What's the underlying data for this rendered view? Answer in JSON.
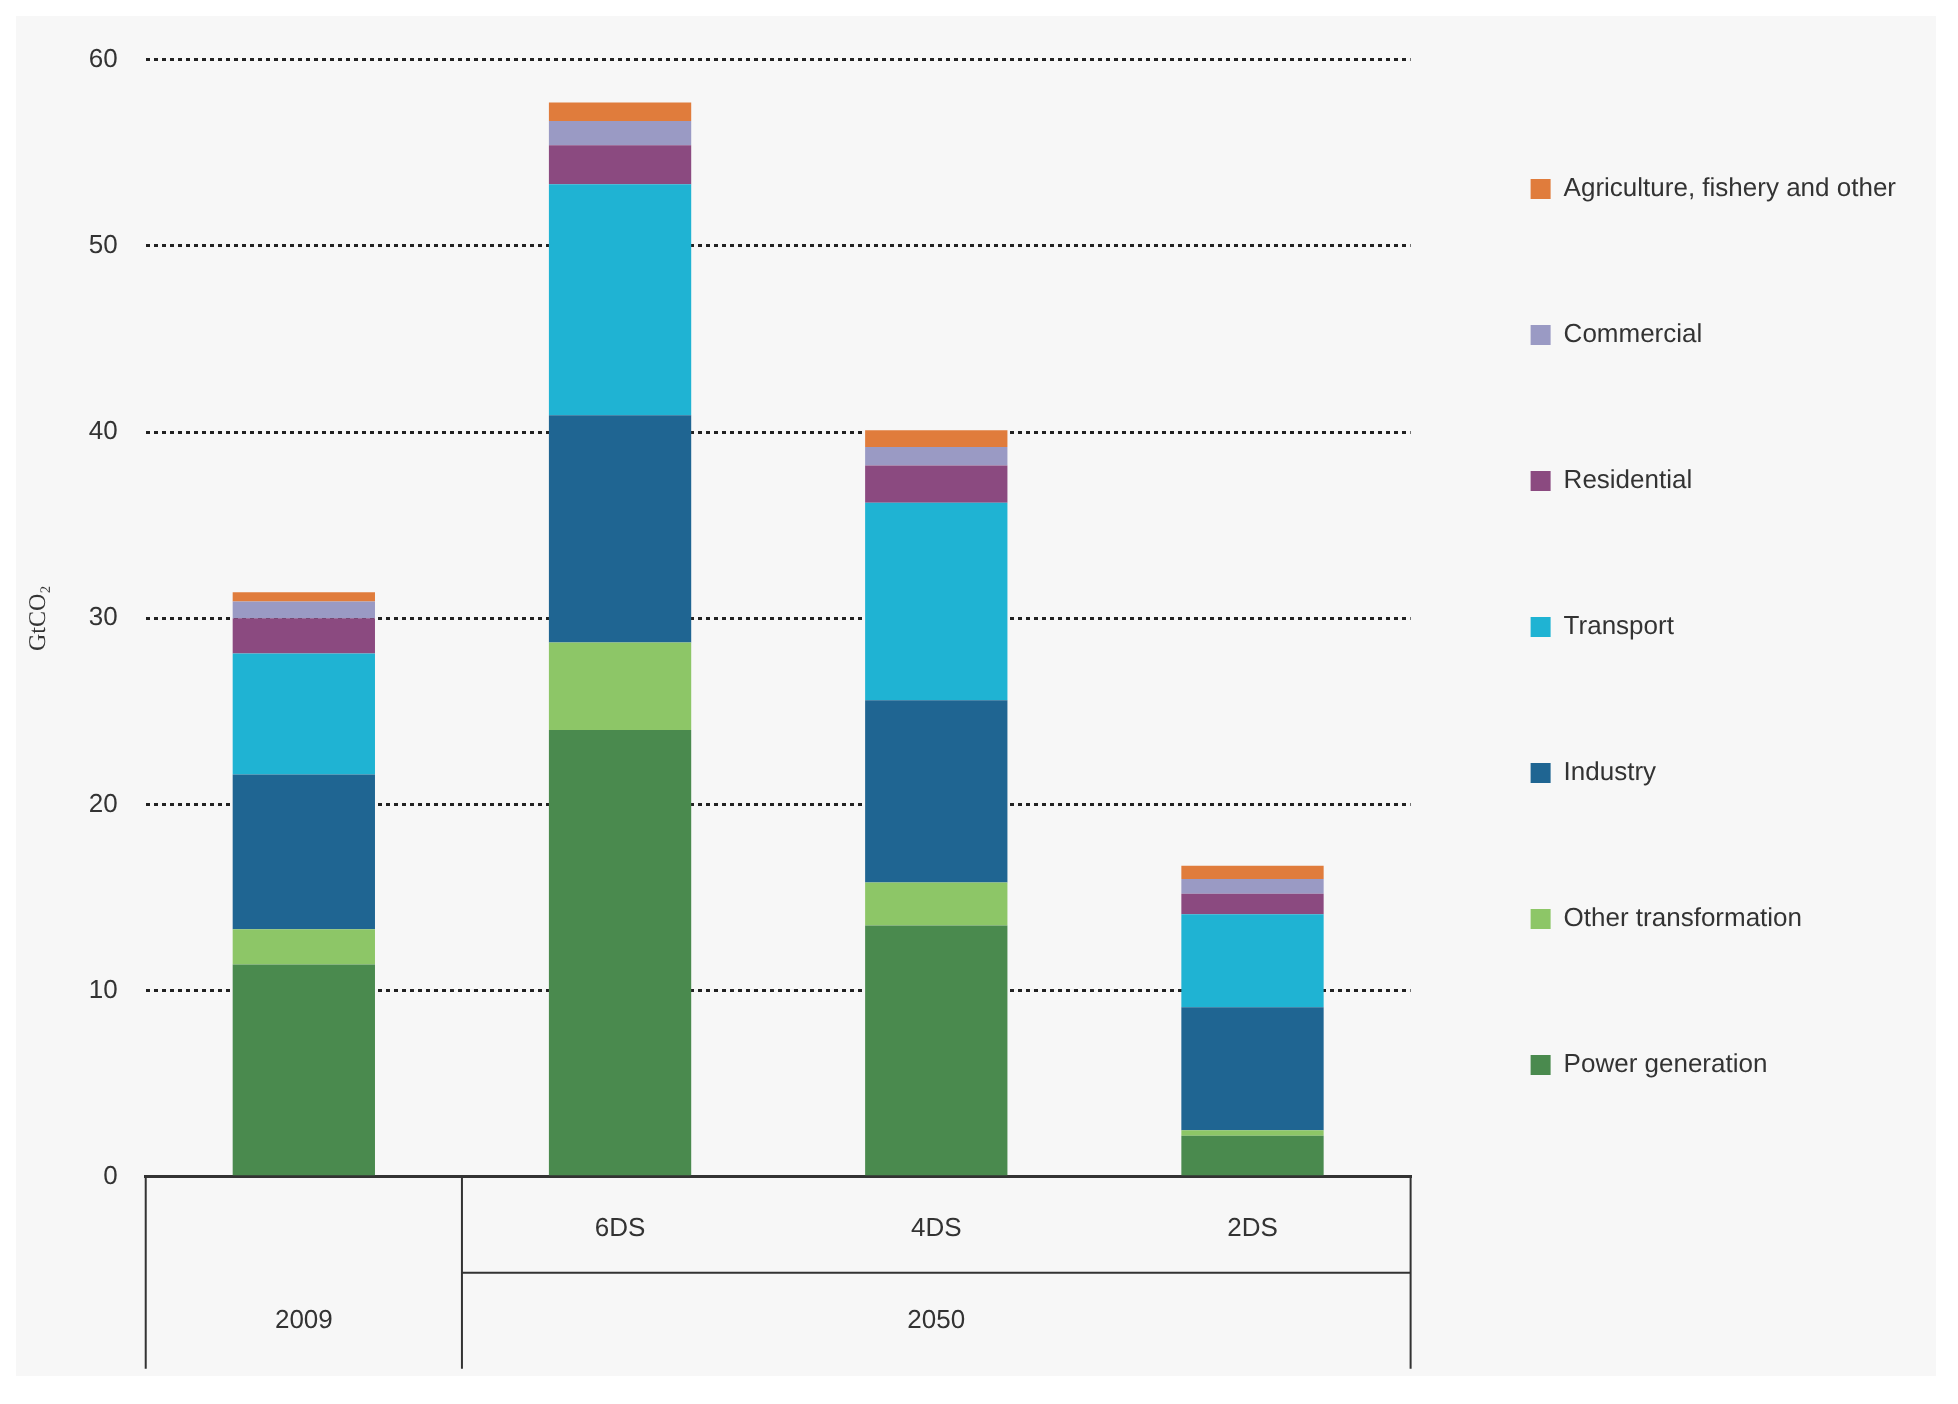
{
  "chart_data": {
    "type": "bar",
    "stacked": true,
    "ylabel": "GtCO₂",
    "categories": [
      null,
      "6DS",
      "4DS",
      "2DS"
    ],
    "annotations": [
      "2009",
      "2050"
    ],
    "series": [
      {
        "name": "Power generation",
        "color": "#4a8a4e",
        "values": [
          11.4,
          24.0,
          13.5,
          2.2
        ]
      },
      {
        "name": "Other transformation",
        "color": "#8dc667",
        "values": [
          1.9,
          4.7,
          2.3,
          0.3
        ]
      },
      {
        "name": "Industry",
        "color": "#1f6592",
        "values": [
          8.3,
          12.2,
          9.8,
          6.6
        ]
      },
      {
        "name": "Transport",
        "color": "#1fb3d3",
        "values": [
          6.5,
          12.4,
          10.6,
          5.0
        ]
      },
      {
        "name": "Residential",
        "color": "#8b4a80",
        "values": [
          1.9,
          2.1,
          2.0,
          1.1
        ]
      },
      {
        "name": "Commercial",
        "color": "#9a9ac4",
        "values": [
          0.9,
          1.3,
          1.0,
          0.8
        ]
      },
      {
        "name": "Agriculture, fishery and other",
        "color": "#e07c3c",
        "values": [
          0.5,
          1.0,
          0.9,
          0.7
        ]
      }
    ],
    "ylim": [
      0,
      60
    ],
    "yticks": [
      0,
      10,
      20,
      30,
      40,
      50,
      60
    ],
    "grid": "y",
    "legend": "right"
  }
}
